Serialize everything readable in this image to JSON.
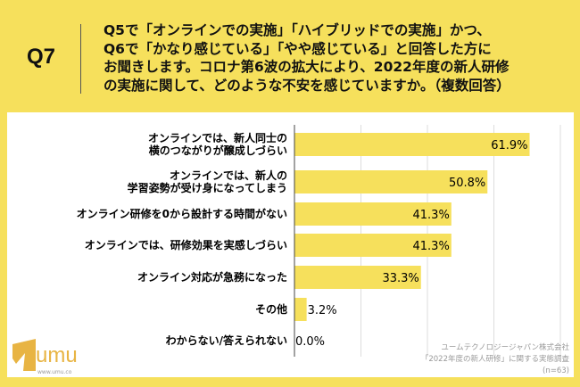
{
  "header": {
    "question_number": "Q7",
    "question_lines": [
      "Q5で「オンラインでの実施」「ハイブリッドでの実施」かつ、",
      "Q6で「かなり感じている」「やや感じている」と回答した方に",
      "お聞きします。コロナ第6波の拡大により、2022年度の新人研修",
      "の実施に関して、どのような不安を感じていますか。（複数回答）"
    ]
  },
  "chart_data": {
    "type": "bar",
    "orientation": "horizontal",
    "categories": [
      [
        "オンラインでは、新人同士の",
        "横のつながりが醸成しづらい"
      ],
      [
        "オンラインでは、新人の",
        "学習姿勢が受け身になってしまう"
      ],
      [
        "オンライン研修を0から設計する時間がない"
      ],
      [
        "オンラインでは、研修効果を実感しづらい"
      ],
      [
        "オンライン対応が急務になった"
      ],
      [
        "その他"
      ],
      [
        "わからない/答えられない"
      ]
    ],
    "values": [
      61.9,
      50.8,
      41.3,
      41.3,
      33.3,
      3.2,
      0.0
    ],
    "data_labels": [
      "61.9%",
      "50.8%",
      "41.3%",
      "41.3%",
      "33.3%",
      "3.2%",
      "0.0%"
    ],
    "xlim": [
      0,
      70
    ],
    "grid": true,
    "bar_color": "#f6e05c"
  },
  "footer": {
    "credit_lines": [
      "ユームテクノロジージャパン株式会社",
      "「2022年度の新人研修」に関する実態調査",
      "(n=63)"
    ],
    "logo_text": "umu",
    "logo_url": "www.umu.co"
  }
}
